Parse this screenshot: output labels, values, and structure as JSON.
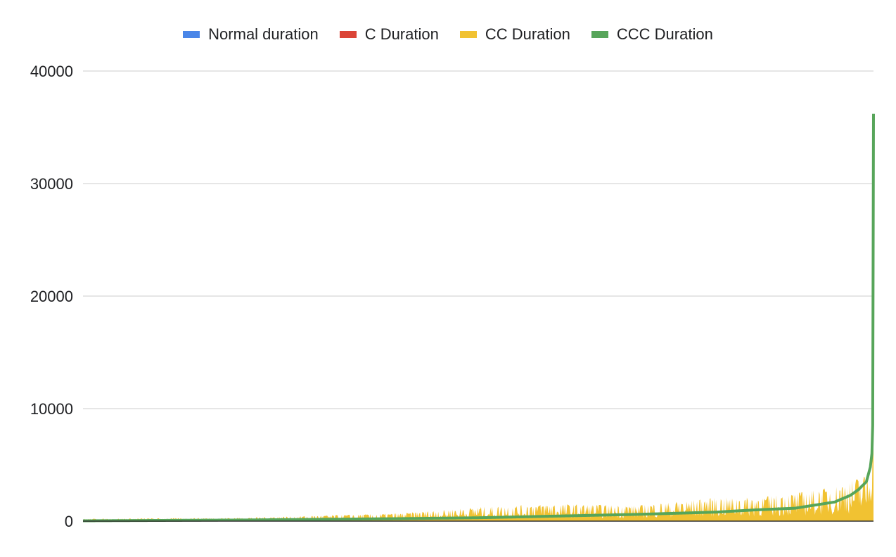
{
  "chart_data": {
    "type": "area",
    "title": "",
    "xlabel": "",
    "ylabel": "",
    "ylim": [
      0,
      40000
    ],
    "yticks": [
      0,
      10000,
      20000,
      30000,
      40000
    ],
    "ytick_labels": [
      "0",
      "10000",
      "20000",
      "30000",
      "40000"
    ],
    "grid": true,
    "legend_position": "top",
    "x_count": 1000,
    "x": "sorted record index (not labeled)",
    "series": [
      {
        "name": "Normal duration",
        "color": "#4a86e8",
        "mark": "area",
        "sample_x": [
          0,
          900,
          990,
          999
        ],
        "sample_y": [
          0,
          0,
          0,
          0
        ]
      },
      {
        "name": "C Duration",
        "color": "#db4437",
        "mark": "area",
        "sample_x": [
          0,
          900,
          980,
          990,
          995,
          999
        ],
        "sample_y": [
          0,
          20,
          60,
          150,
          400,
          300
        ]
      },
      {
        "name": "CC Duration",
        "color": "#f1c232",
        "mark": "area",
        "sample_x": [
          0,
          200,
          400,
          500,
          600,
          700,
          800,
          850,
          900,
          950,
          980,
          990,
          995,
          999
        ],
        "sample_y": [
          150,
          220,
          500,
          900,
          1100,
          1000,
          1500,
          1500,
          1800,
          2200,
          2800,
          3000,
          5000,
          7500
        ]
      },
      {
        "name": "CCC Duration",
        "color": "#57a55a",
        "mark": "line",
        "sample_x": [
          0,
          200,
          400,
          500,
          600,
          700,
          800,
          850,
          900,
          950,
          970,
          980,
          990,
          995,
          997,
          998,
          999
        ],
        "sample_y": [
          30,
          100,
          220,
          300,
          450,
          600,
          800,
          1000,
          1150,
          1700,
          2300,
          2800,
          3500,
          4800,
          6000,
          8500,
          36200
        ]
      }
    ]
  }
}
